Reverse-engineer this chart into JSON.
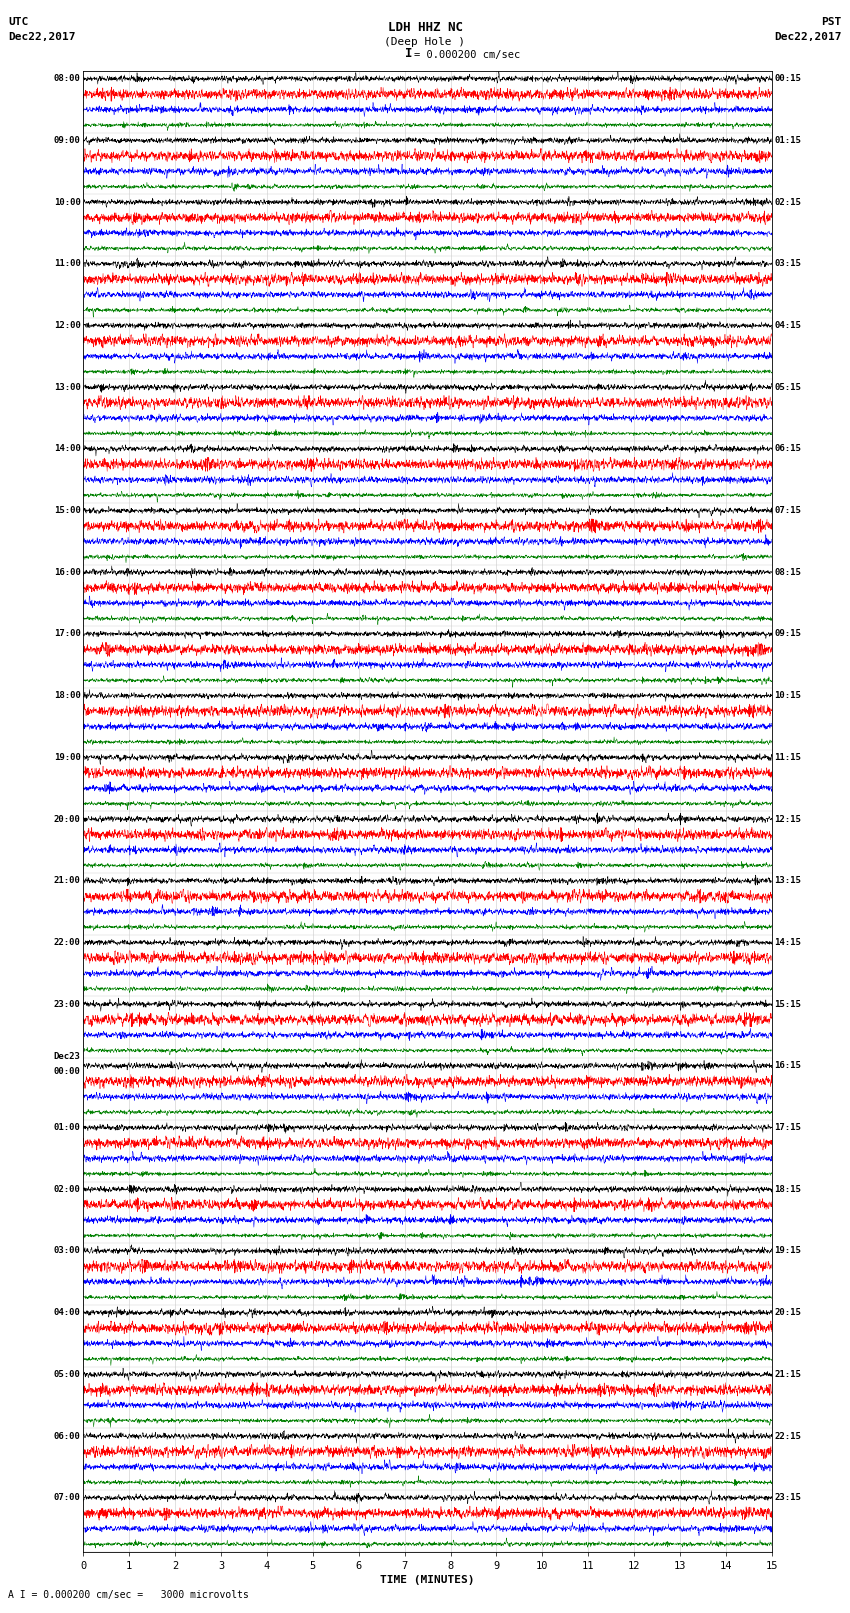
{
  "title_line1": "LDH HHZ NC",
  "title_line2": "(Deep Hole )",
  "scale_label": "= 0.000200 cm/sec",
  "scale_bar_label": "I",
  "bottom_label": "A I = 0.000200 cm/sec =   3000 microvolts",
  "xlabel": "TIME (MINUTES)",
  "utc_header1": "UTC",
  "utc_header2": "Dec22,2017",
  "pst_header1": "PST",
  "pst_header2": "Dec22,2017",
  "utc_labels": [
    "08:00",
    "09:00",
    "10:00",
    "11:00",
    "12:00",
    "13:00",
    "14:00",
    "15:00",
    "16:00",
    "17:00",
    "18:00",
    "19:00",
    "20:00",
    "21:00",
    "22:00",
    "23:00",
    "Dec23\n00:00",
    "01:00",
    "02:00",
    "03:00",
    "04:00",
    "05:00",
    "06:00",
    "07:00"
  ],
  "pst_labels": [
    "00:15",
    "01:15",
    "02:15",
    "03:15",
    "04:15",
    "05:15",
    "06:15",
    "07:15",
    "08:15",
    "09:15",
    "10:15",
    "11:15",
    "12:15",
    "13:15",
    "14:15",
    "15:15",
    "16:15",
    "17:15",
    "18:15",
    "19:15",
    "20:15",
    "21:15",
    "22:15",
    "23:15"
  ],
  "n_hour_rows": 24,
  "n_traces_per_row": 4,
  "colors": [
    "black",
    "red",
    "blue",
    "green"
  ],
  "fig_width": 8.5,
  "fig_height": 16.13,
  "bg_color": "white",
  "grid_color": "#888888",
  "xmin": 0,
  "xmax": 15,
  "xticks": [
    0,
    1,
    2,
    3,
    4,
    5,
    6,
    7,
    8,
    9,
    10,
    11,
    12,
    13,
    14,
    15
  ],
  "amplitudes": [
    0.28,
    0.52,
    0.32,
    0.2
  ],
  "noise_seed": 42,
  "n_samples": 3000
}
